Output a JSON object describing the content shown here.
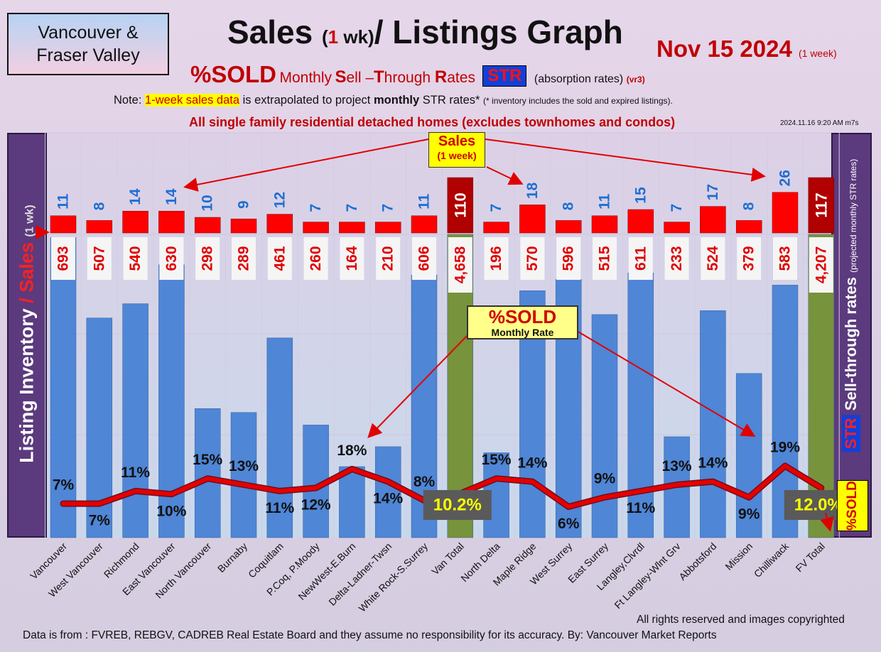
{
  "header": {
    "region_line1": "Vancouver &",
    "region_line2": "Fraser Valley",
    "title_pre": "Sales",
    "title_paren_open": "(",
    "title_paren_num": "1",
    "title_paren_close": " wk)",
    "title_post": "/ Listings Graph",
    "date": "Nov 15  2024",
    "date_note": "(1 week)",
    "subtitle_pct": "%SOLD",
    "subtitle_monthly": "Monthly",
    "subtitle_s": "S",
    "subtitle_ell": "ell –",
    "subtitle_t": "T",
    "subtitle_hrough": "hrough",
    "subtitle_r": "R",
    "subtitle_ates": "ates",
    "str_badge": "STR",
    "absorption": "(absorption rates)",
    "version": "(vr3)",
    "note_prefix": "Note:",
    "note_highlight": "1-week sales data",
    "note_mid": "is extrapolated to project",
    "note_bold": "monthly",
    "note_end": "STR rates*",
    "note_small": "(* inventory includes the sold and expired listings).",
    "scope": "All single family residential detached homes (excludes townhomes and condos)",
    "timestamp": "2024.11.16 9:20 AM m7s"
  },
  "side_labels": {
    "left_main": "Listing Inventory",
    "left_sep": "/",
    "left_sales": "Sales",
    "left_small": "(1 wk)",
    "right_str": "STR",
    "right_main": "Sell-through rates",
    "right_small": "(projected monthly STR rates)",
    "right_sold": "%SOLD"
  },
  "callouts": {
    "sales_line1": "Sales",
    "sales_line2": "(1 week)",
    "sold_line1": "%SOLD",
    "sold_line2": "Monthly Rate"
  },
  "footer": {
    "copyright": "All rights reserved and  images copyrighted",
    "source": "Data is from : FVREB, REBGV, CADREB Real Estate Board and they assume no responsibility for its accuracy. By: Vancouver Market Reports"
  },
  "colors": {
    "inventory_bar": "#4f86d6",
    "total_bar": "#77933c",
    "sales_bar": "#ff0000",
    "total_sales_bar": "#b00000",
    "str_line": "#e60000"
  },
  "chart_data": {
    "type": "bar",
    "categories": [
      "Vancouver",
      "West Vancouver",
      "Richmond",
      "East Vancouver",
      "North Vancouver",
      "Burnaby",
      "Coquitlam",
      "P.Coq, P.Moody",
      "NewWest-E.Burn",
      "Delta-Ladner-Twsn",
      "White Rock-S.Surrey",
      "Van Total",
      "North Delta",
      "Maple Ridge",
      "West Surrey",
      "East Surrey",
      "Langley,Clvrdl",
      "Ft Langley-Wlnt Grv",
      "Abbotsford",
      "Mission",
      "Chilliwack",
      "FV Total"
    ],
    "is_total": [
      false,
      false,
      false,
      false,
      false,
      false,
      false,
      false,
      false,
      false,
      false,
      true,
      false,
      false,
      false,
      false,
      false,
      false,
      false,
      false,
      false,
      true
    ],
    "inventory": [
      693,
      507,
      540,
      630,
      298,
      289,
      461,
      260,
      164,
      210,
      606,
      4658,
      196,
      570,
      596,
      515,
      611,
      233,
      524,
      379,
      583,
      4207
    ],
    "inventory_labels": [
      "693",
      "507",
      "540",
      "630",
      "298",
      "289",
      "461",
      "260",
      "164",
      "210",
      "606",
      "4,658",
      "196",
      "570",
      "596",
      "515",
      "611",
      "233",
      "524",
      "379",
      "583",
      "4,207"
    ],
    "sales": [
      11,
      8,
      14,
      14,
      10,
      9,
      12,
      7,
      7,
      7,
      11,
      110,
      7,
      18,
      8,
      11,
      15,
      7,
      17,
      8,
      26,
      117
    ],
    "str_percent": [
      7,
      7,
      11,
      10,
      15,
      13,
      11,
      12,
      18,
      14,
      8,
      10.2,
      15,
      14,
      6,
      9,
      11,
      13,
      14,
      9,
      19,
      12.0
    ],
    "str_labels": [
      "7%",
      "7%",
      "11%",
      "10%",
      "15%",
      "13%",
      "11%",
      "12%",
      "18%",
      "14%",
      "8%",
      "10.2%",
      "15%",
      "14%",
      "6%",
      "9%",
      "11%",
      "13%",
      "14%",
      "9%",
      "19%",
      "12.0%"
    ]
  }
}
